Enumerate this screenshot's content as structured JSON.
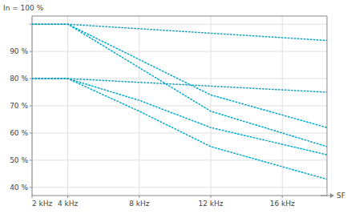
{
  "chart_data": {
    "type": "line",
    "y_label": "In = 100 %",
    "x_label": "SF",
    "color": "#00aacc",
    "line_style": "dotted",
    "grid": true,
    "xlim": [
      2000,
      18500
    ],
    "xticks": [
      {
        "value": 2000,
        "label": "2 kHz"
      },
      {
        "value": 4000,
        "label": "4 kHz"
      },
      {
        "value": 8000,
        "label": "8 kHz"
      },
      {
        "value": 12000,
        "label": "12 kHz"
      },
      {
        "value": 16000,
        "label": "16 kHz"
      }
    ],
    "ylim": [
      37,
      103
    ],
    "yticks": [
      {
        "value": 40,
        "label": "40 %"
      },
      {
        "value": 50,
        "label": "50 %"
      },
      {
        "value": 60,
        "label": "60 %"
      },
      {
        "value": 70,
        "label": "70 %"
      },
      {
        "value": 80,
        "label": "80 %"
      },
      {
        "value": 90,
        "label": "90 %"
      },
      {
        "value": 100,
        "label": null
      }
    ],
    "series": [
      {
        "x": [
          2000,
          4000,
          18500
        ],
        "values": [
          100,
          100,
          94
        ]
      },
      {
        "x": [
          2000,
          4000,
          8000,
          12000,
          18500
        ],
        "values": [
          100,
          100,
          87,
          74,
          62
        ]
      },
      {
        "x": [
          2000,
          4000,
          8000,
          12000,
          18500
        ],
        "values": [
          100,
          100,
          84,
          68,
          55
        ]
      },
      {
        "x": [
          2000,
          4000,
          18500
        ],
        "values": [
          80,
          80,
          75
        ]
      },
      {
        "x": [
          2000,
          4000,
          8000,
          12000,
          18500
        ],
        "values": [
          80,
          80,
          72,
          62,
          52
        ]
      },
      {
        "x": [
          2000,
          4000,
          8000,
          12000,
          18500
        ],
        "values": [
          80,
          80,
          68,
          55,
          43
        ]
      }
    ]
  }
}
